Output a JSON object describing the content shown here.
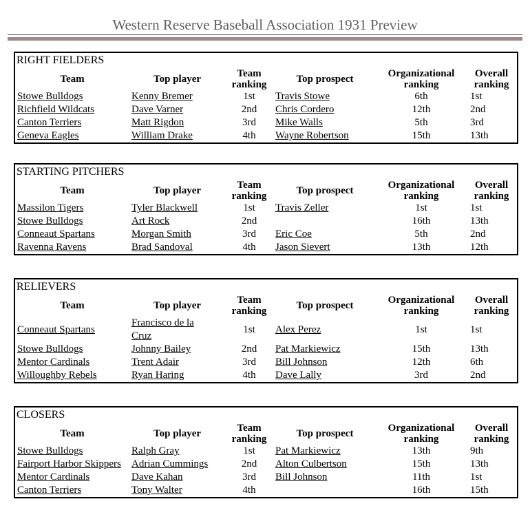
{
  "page": {
    "title": "Western Reserve Baseball Association 1931 Preview"
  },
  "colors": {
    "title_text": "#5f5f5f",
    "rule_thin": "#5e5254",
    "rule_thick": "#a0888a",
    "table_border": "#000000"
  },
  "columns": [
    "Team",
    "Top player",
    "Team ranking",
    "Top prospect",
    "Organizational ranking",
    "Overall ranking"
  ],
  "tables": [
    {
      "section": "RIGHT FIELDERS",
      "rows": [
        [
          "Stowe Bulldogs",
          "Kenny Bremer",
          "1st",
          "Travis Stowe",
          "6th",
          "1st"
        ],
        [
          "Richfield Wildcats",
          "Dave Varner",
          "2nd",
          "Chris Cordero",
          "12th",
          "2nd"
        ],
        [
          "Canton Terriers",
          "Matt Rigdon",
          "3rd",
          "Mike Walls",
          "5th",
          "3rd"
        ],
        [
          "Geneva Eagles",
          "William Drake",
          "4th",
          "Wayne Robertson",
          "15th",
          "13th"
        ]
      ]
    },
    {
      "section": "STARTING PITCHERS",
      "rows": [
        [
          "Massilon Tigers",
          "Tyler Blackwell",
          "1st",
          "Travis Zeller",
          "1st",
          "1st"
        ],
        [
          "Stowe Bulldogs",
          "Art Rock",
          "2nd",
          "",
          "16th",
          "13th"
        ],
        [
          "Conneaut Spartans",
          "Morgan Smith",
          "3rd",
          "Eric Coe",
          "5th",
          "2nd"
        ],
        [
          "Ravenna Ravens",
          "Brad Sandoval",
          "4th",
          "Jason Sievert",
          "13th",
          "12th"
        ]
      ]
    },
    {
      "section": "RELIEVERS",
      "rows": [
        [
          "Conneaut Spartans",
          "Francisco de la Cruz",
          "1st",
          "Alex Perez",
          "1st",
          "1st"
        ],
        [
          "Stowe Bulldogs",
          "Johnny Bailey",
          "2nd",
          "Pat Markiewicz",
          "15th",
          "13th"
        ],
        [
          "Mentor Cardinals",
          "Trent Adair",
          "3rd",
          "Bill Johnson",
          "12th",
          "6th"
        ],
        [
          "Willoughby Rebels",
          "Ryan Haring",
          "4th",
          "Dave Lally",
          "3rd",
          "2nd"
        ]
      ]
    },
    {
      "section": "CLOSERS",
      "rows": [
        [
          "Stowe Bulldogs",
          "Ralph Gray",
          "1st",
          "Pat Markiewicz",
          "13th",
          "9th"
        ],
        [
          "Fairport Harbor Skippers",
          "Adrian Cummings",
          "2nd",
          "Alton Culbertson",
          "15th",
          "13th"
        ],
        [
          "Mentor Cardinals",
          "Dave Kahan",
          "3rd",
          "Bill Johnson",
          "11th",
          "1st"
        ],
        [
          "Canton Terriers",
          "Tony Walter",
          "4th",
          "",
          "16th",
          "15th"
        ]
      ]
    }
  ]
}
